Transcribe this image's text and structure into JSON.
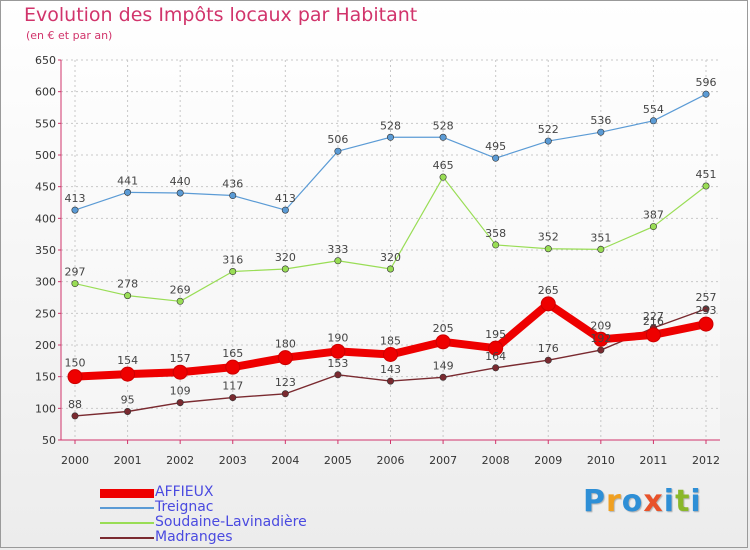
{
  "header": {
    "title": "Evolution des Impôts locaux par Habitant",
    "subtitle": "(en € et par an)"
  },
  "logo": {
    "letters": [
      "P",
      "r",
      "o",
      "x",
      "i",
      "t",
      "i"
    ],
    "colors": [
      "#2e8fd6",
      "#f0a020",
      "#2e8fd6",
      "#e8522a",
      "#2e8fd6",
      "#8ab82a",
      "#2e8fd6"
    ]
  },
  "chart_data": {
    "type": "line",
    "x": [
      "2000",
      "2001",
      "2002",
      "2003",
      "2004",
      "2005",
      "2006",
      "2007",
      "2008",
      "2009",
      "2010",
      "2011",
      "2012"
    ],
    "ylim": [
      50,
      650
    ],
    "yticks": [
      50,
      100,
      150,
      200,
      250,
      300,
      350,
      400,
      450,
      500,
      550,
      600,
      650
    ],
    "grid": true,
    "legend_position": "bottom-left",
    "series": [
      {
        "name": "AFFIEUX",
        "color": "#ee0000",
        "values": [
          150,
          154,
          157,
          165,
          180,
          190,
          185,
          205,
          195,
          265,
          209,
          216,
          233
        ]
      },
      {
        "name": "Treignac",
        "color": "#5b9bd5",
        "values": [
          413,
          441,
          440,
          436,
          413,
          506,
          528,
          528,
          495,
          522,
          536,
          554,
          596
        ]
      },
      {
        "name": "Soudaine-Lavinadière",
        "color": "#99dd55",
        "values": [
          297,
          278,
          269,
          316,
          320,
          333,
          320,
          465,
          358,
          352,
          351,
          387,
          451
        ]
      },
      {
        "name": "Madranges",
        "color": "#7a2a30",
        "values": [
          88,
          95,
          109,
          117,
          123,
          153,
          143,
          149,
          164,
          176,
          192,
          227,
          257
        ]
      }
    ]
  }
}
